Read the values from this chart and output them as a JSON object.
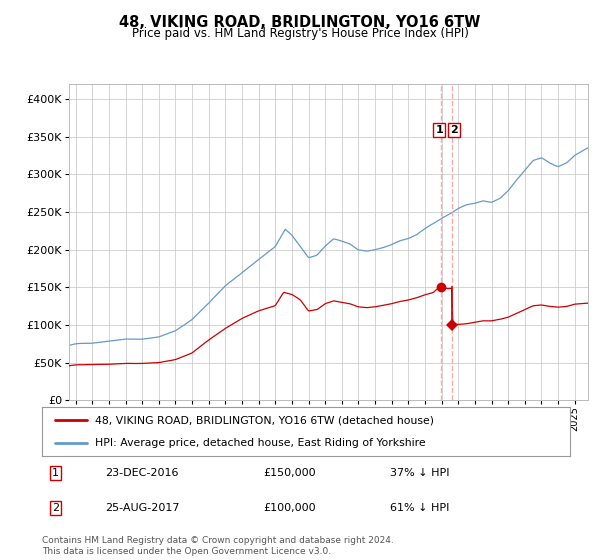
{
  "title": "48, VIKING ROAD, BRIDLINGTON, YO16 6TW",
  "subtitle": "Price paid vs. HM Land Registry's House Price Index (HPI)",
  "footer": "Contains HM Land Registry data © Crown copyright and database right 2024.\nThis data is licensed under the Open Government Licence v3.0.",
  "legend_line1": "48, VIKING ROAD, BRIDLINGTON, YO16 6TW (detached house)",
  "legend_line2": "HPI: Average price, detached house, East Riding of Yorkshire",
  "transaction1_date": "23-DEC-2016",
  "transaction1_price": "£150,000",
  "transaction1_info": "37% ↓ HPI",
  "transaction2_date": "25-AUG-2017",
  "transaction2_price": "£100,000",
  "transaction2_info": "61% ↓ HPI",
  "hpi_color": "#6699cc",
  "price_color": "#cc0000",
  "vline_color": "#ffaaaa",
  "dot_color": "#cc0000",
  "bg_color": "#ffffff",
  "grid_color": "#cccccc",
  "ylim": [
    0,
    420000
  ],
  "yticks": [
    0,
    50000,
    100000,
    150000,
    200000,
    250000,
    300000,
    350000,
    400000
  ],
  "xlim_start": 1994.6,
  "xlim_end": 2025.8,
  "transaction1_x": 2016.98,
  "transaction1_y": 150000,
  "transaction2_x": 2017.65,
  "transaction2_y": 100000
}
